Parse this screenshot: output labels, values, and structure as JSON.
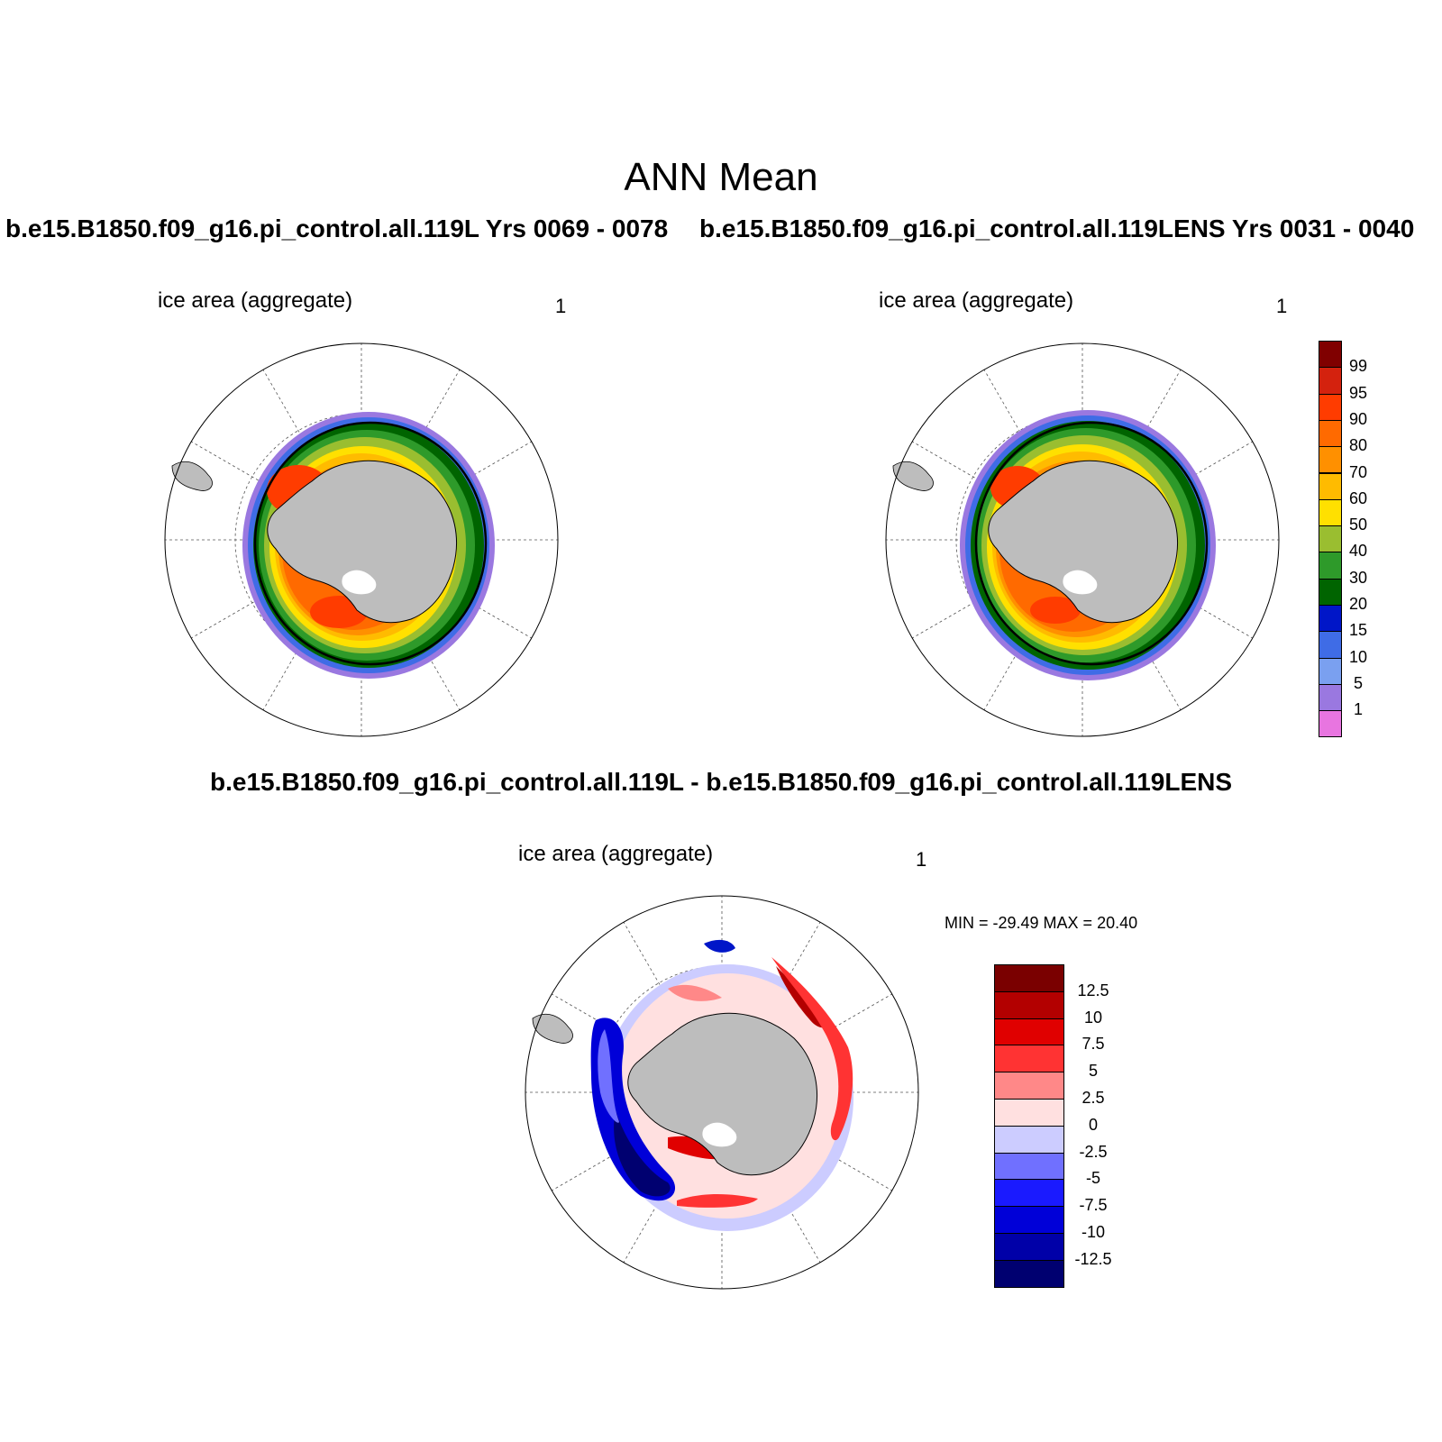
{
  "title": "ANN Mean",
  "panels": [
    {
      "case_title": "b.e15.B1850.f09_g16.pi_control.all.119L  Yrs 0069 - 0078",
      "variable": "ice area  (aggregate)",
      "units": "1"
    },
    {
      "case_title": "b.e15.B1850.f09_g16.pi_control.all.119LENS  Yrs 0031 - 0040",
      "variable": "ice area  (aggregate)",
      "units": "1"
    }
  ],
  "difference_panel": {
    "title": "b.e15.B1850.f09_g16.pi_control.all.119L - b.e15.B1850.f09_g16.pi_control.all.119LENS",
    "variable": "ice area  (aggregate)",
    "units": "1",
    "minmax": "MIN = -29.49 MAX =  20.40"
  },
  "colorbar_top": {
    "labels": [
      "99",
      "95",
      "90",
      "80",
      "70",
      "60",
      "50",
      "40",
      "30",
      "20",
      "15",
      "10",
      "5",
      "1"
    ],
    "colors": [
      "#800000",
      "#d4220e",
      "#ff3c00",
      "#ff6a00",
      "#ff9000",
      "#ffbb00",
      "#ffe000",
      "#9abe30",
      "#2e9a2a",
      "#006400",
      "#0016c8",
      "#3f6ce6",
      "#7aa0f0",
      "#9a78e0",
      "#e875e0"
    ]
  },
  "colorbar_diff": {
    "labels": [
      "12.5",
      "10",
      "7.5",
      "5",
      "2.5",
      "0",
      "-2.5",
      "-5",
      "-7.5",
      "-10",
      "-12.5"
    ],
    "colors": [
      "#7a0000",
      "#b30000",
      "#e00000",
      "#ff3333",
      "#ff8888",
      "#ffe0e0",
      "#ccccff",
      "#7070ff",
      "#1a1aff",
      "#0000d8",
      "#0000a8",
      "#000070"
    ]
  }
}
